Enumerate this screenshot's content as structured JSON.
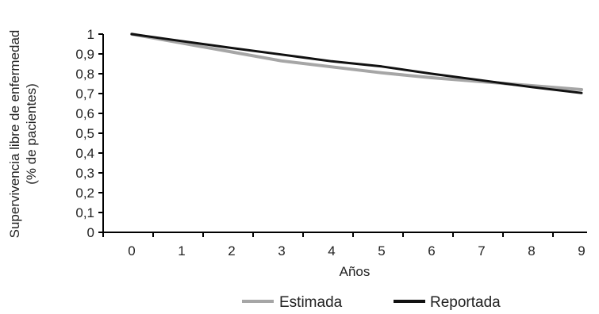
{
  "chart_data": {
    "type": "line",
    "title": "",
    "xlabel": "Años",
    "ylabel_lines": [
      "Supervivencia libre de enfermedad",
      "(% de pacientes)"
    ],
    "x": [
      0,
      1,
      2,
      3,
      4,
      5,
      6,
      7,
      8,
      9
    ],
    "x_tick_labels": [
      "0",
      "1",
      "2",
      "3",
      "4",
      "5",
      "6",
      "7",
      "8",
      "9"
    ],
    "y_ticks": [
      0,
      0.1,
      0.2,
      0.3,
      0.4,
      0.5,
      0.6,
      0.7,
      0.8,
      0.9,
      1
    ],
    "y_tick_labels": [
      "0",
      "0,1",
      "0,2",
      "0,3",
      "0,4",
      "0,5",
      "0,6",
      "0,7",
      "0,8",
      "0,9",
      "1"
    ],
    "xlim": [
      0,
      9
    ],
    "ylim": [
      0,
      1
    ],
    "grid": false,
    "legend_position": "bottom",
    "series": [
      {
        "name": "Estimada",
        "color": "#a6a6a6",
        "values": [
          1.0,
          0.955,
          0.91,
          0.865,
          0.835,
          0.805,
          0.78,
          0.76,
          0.74,
          0.72
        ]
      },
      {
        "name": "Reportada",
        "color": "#111111",
        "values": [
          1.0,
          0.965,
          0.93,
          0.897,
          0.863,
          0.837,
          0.8,
          0.767,
          0.733,
          0.703
        ]
      }
    ]
  }
}
